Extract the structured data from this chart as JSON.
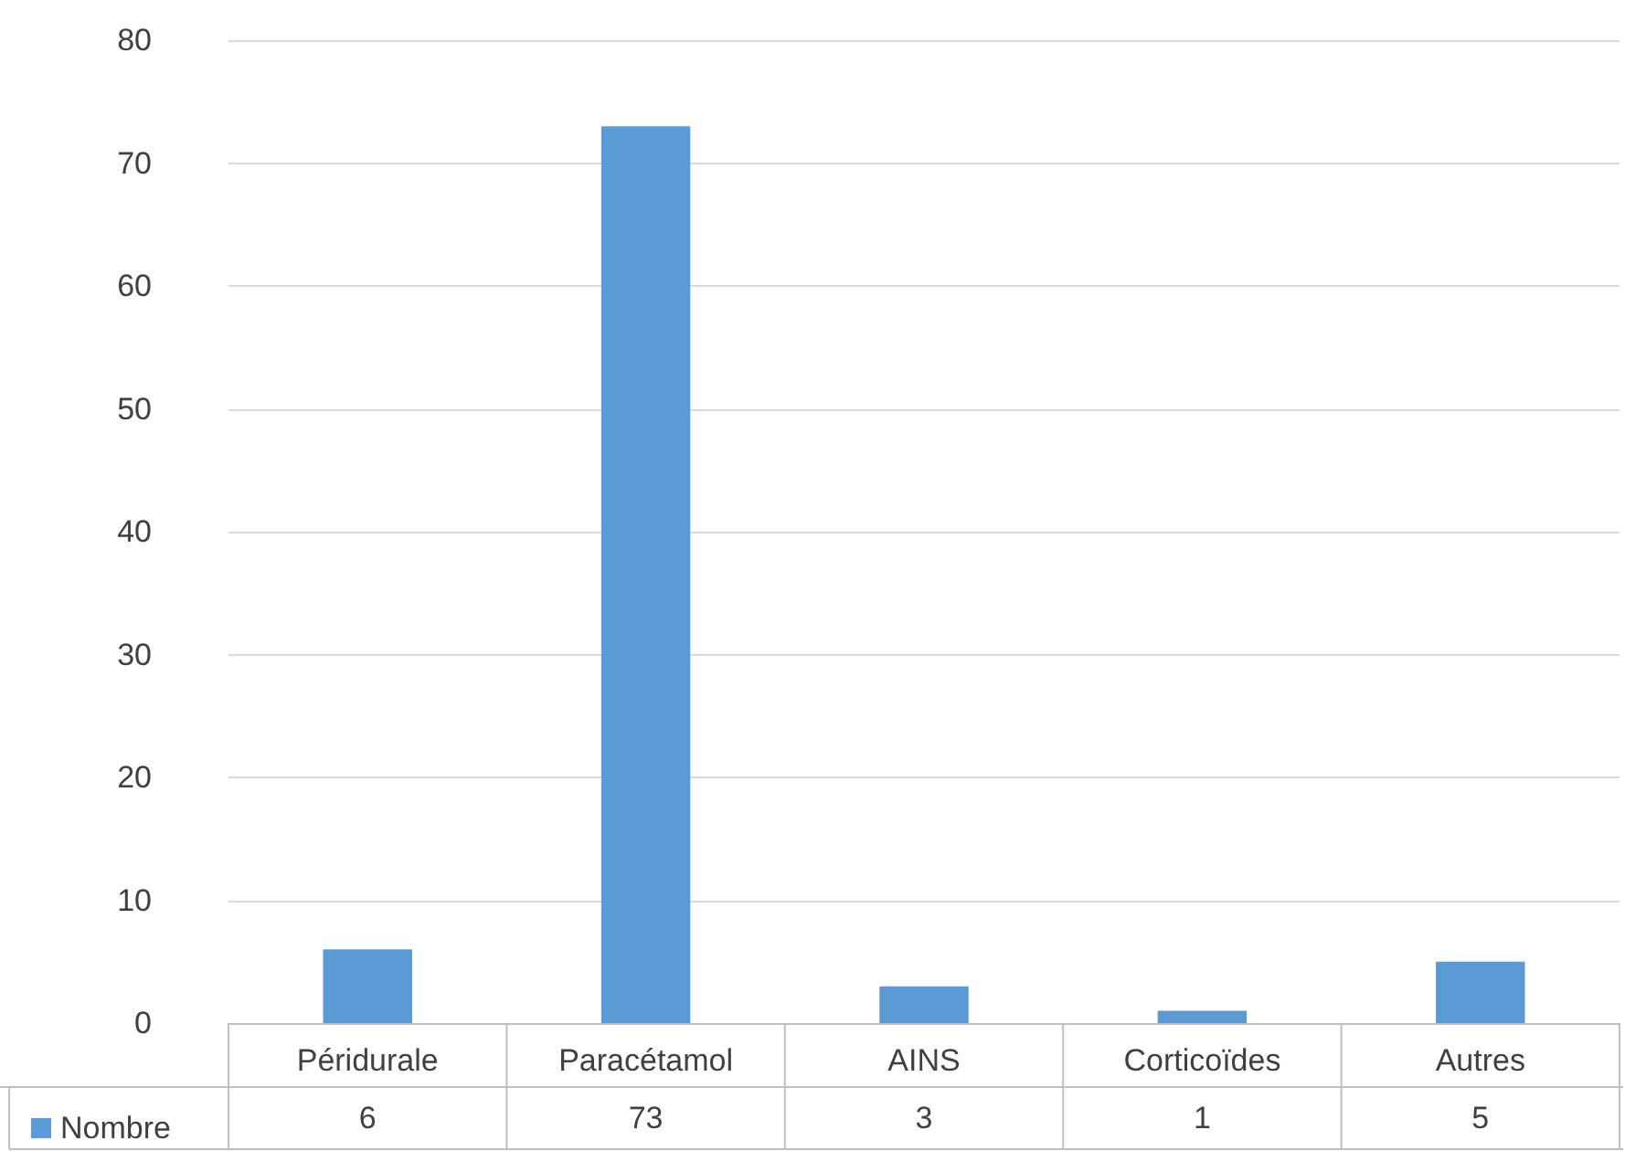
{
  "chart_data": {
    "type": "bar",
    "categories": [
      "Péridurale",
      "Paracétamol",
      "AINS",
      "Corticoïdes",
      "Autres"
    ],
    "series": [
      {
        "name": "Nombre",
        "color": "#5b9bd5",
        "values": [
          6,
          73,
          3,
          1,
          5
        ]
      }
    ],
    "ylim": [
      0,
      80
    ],
    "yticks": [
      0,
      10,
      20,
      30,
      40,
      50,
      60,
      70,
      80
    ],
    "grid": "y",
    "legend": "bottom left",
    "data_labels": true
  }
}
